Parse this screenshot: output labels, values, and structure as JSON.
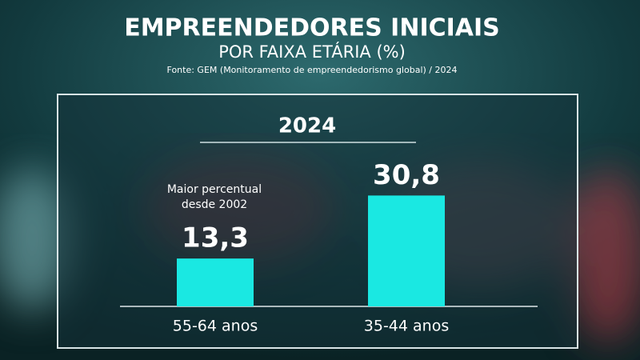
{
  "chart_data": {
    "type": "bar",
    "title": "EMPREENDEDORES INICIAIS",
    "subtitle": "POR FAIXA ETÁRIA (%)",
    "source": "Fonte: GEM (Monitoramento de empreendedorismo global) / 2024",
    "panel_title": "2024",
    "annotation": [
      "Maior percentual",
      "desde 2002"
    ],
    "categories": [
      "55-64 anos",
      "35-44 anos"
    ],
    "values": [
      13.3,
      30.8
    ],
    "value_labels": [
      "13,3",
      "30,8"
    ],
    "color": "#1ae8e2"
  }
}
